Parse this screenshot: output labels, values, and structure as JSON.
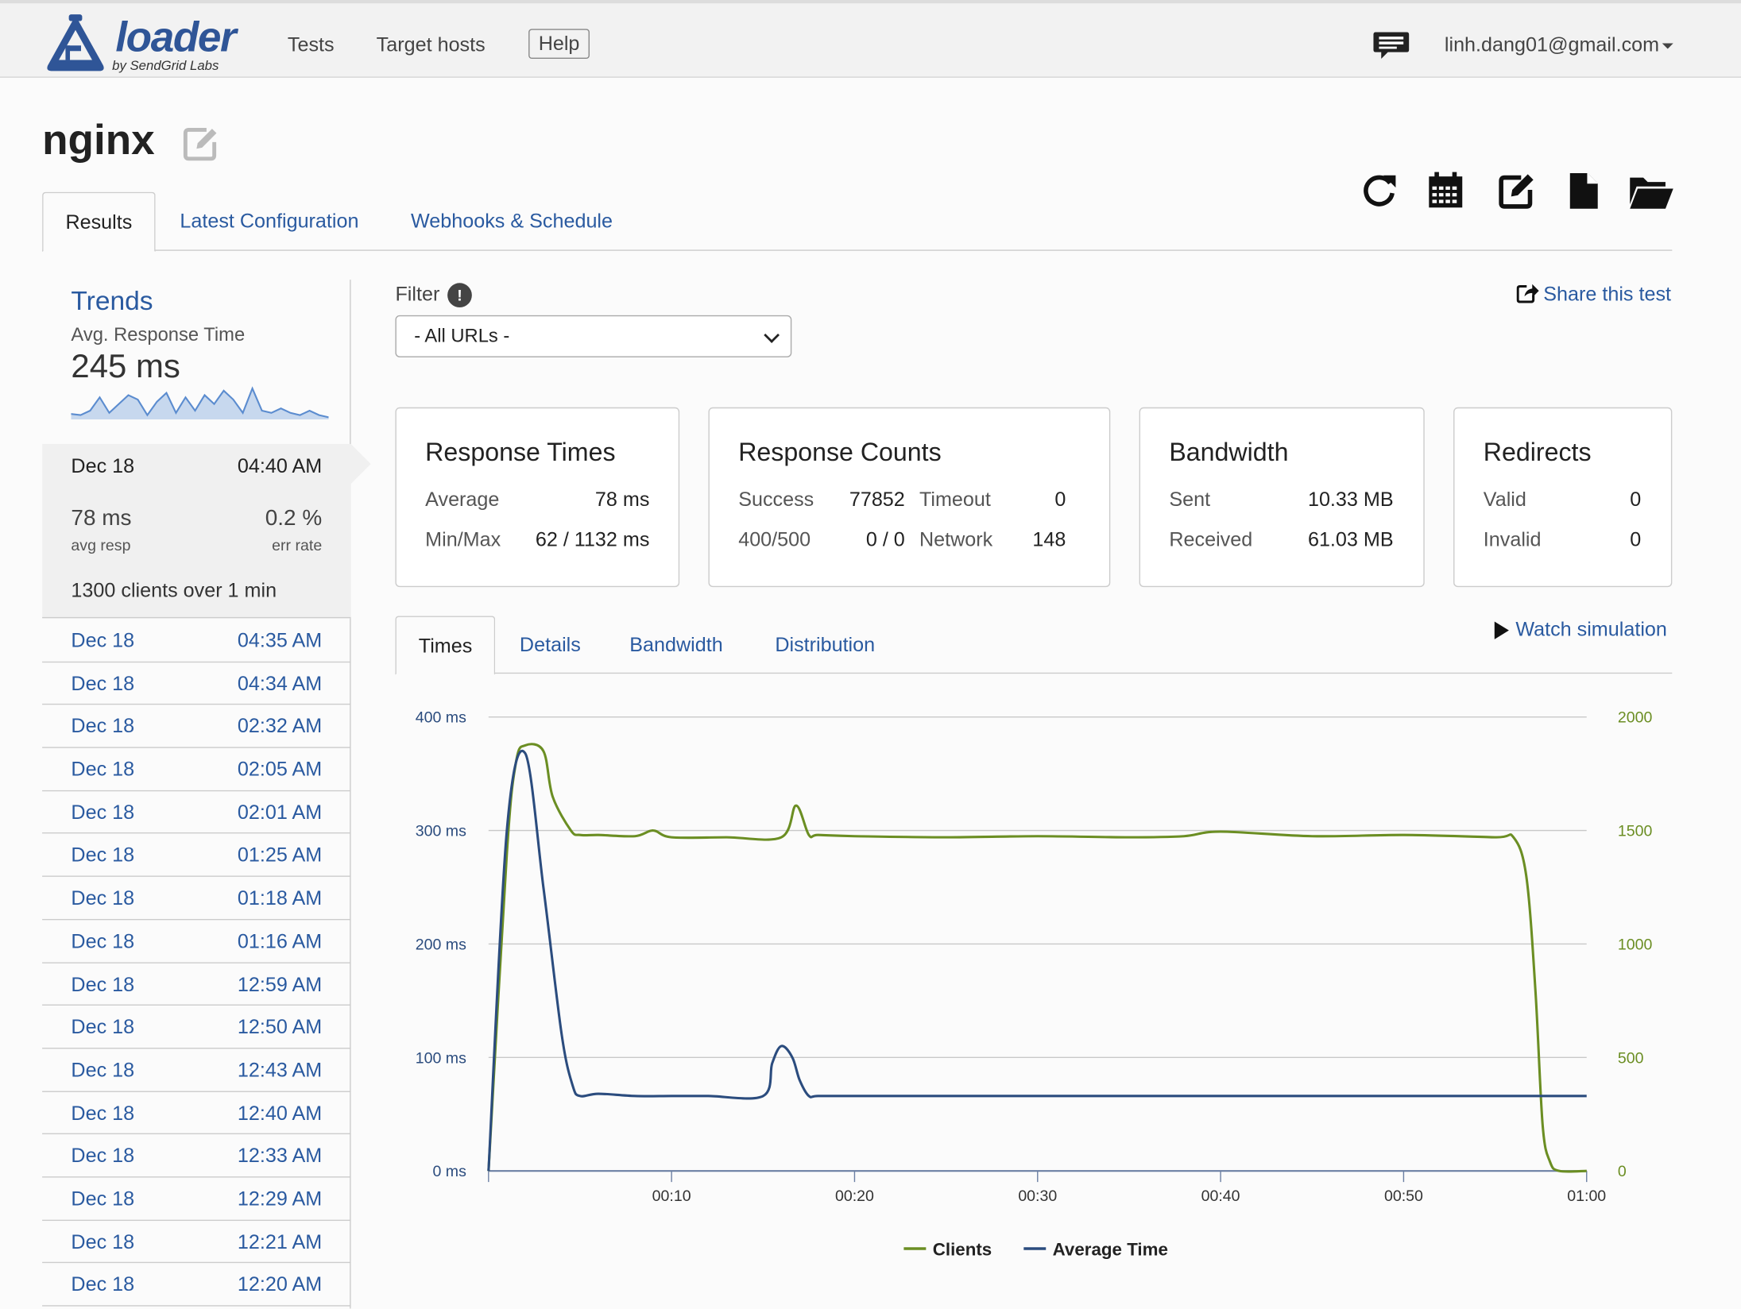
{
  "nav": {
    "logo_text": "loader",
    "logo_sub": "by SendGrid Labs",
    "links": [
      "Tests",
      "Target hosts"
    ],
    "help": "Help",
    "user": "linh.dang01@gmail.com"
  },
  "page": {
    "title": "nginx"
  },
  "toolbar": {
    "icons": [
      "refresh-icon",
      "calendar-icon",
      "edit-icon",
      "file-icon",
      "folder-open-icon"
    ]
  },
  "tabs": [
    {
      "label": "Results",
      "active": true
    },
    {
      "label": "Latest Configuration",
      "active": false
    },
    {
      "label": "Webhooks & Schedule",
      "active": false
    }
  ],
  "sidebar": {
    "trends_title": "Trends",
    "trends_metric": "Avg. Response Time",
    "trends_value": "245 ms",
    "sparkline": [
      5,
      4,
      8,
      20,
      6,
      14,
      22,
      18,
      4,
      16,
      24,
      6,
      20,
      8,
      22,
      14,
      26,
      18,
      6,
      28,
      8,
      6,
      10,
      6,
      4,
      8,
      4,
      2
    ],
    "current": {
      "date": "Dec 18",
      "time": "04:40 AM",
      "avg": "78 ms",
      "avg_label": "avg resp",
      "err": "0.2 %",
      "err_label": "err rate",
      "clients_text": "1300 clients over 1 min"
    },
    "runs": [
      {
        "date": "Dec 18",
        "time": "04:35 AM"
      },
      {
        "date": "Dec 18",
        "time": "04:34 AM"
      },
      {
        "date": "Dec 18",
        "time": "02:32 AM"
      },
      {
        "date": "Dec 18",
        "time": "02:05 AM"
      },
      {
        "date": "Dec 18",
        "time": "02:01 AM"
      },
      {
        "date": "Dec 18",
        "time": "01:25 AM"
      },
      {
        "date": "Dec 18",
        "time": "01:18 AM"
      },
      {
        "date": "Dec 18",
        "time": "01:16 AM"
      },
      {
        "date": "Dec 18",
        "time": "12:59 AM"
      },
      {
        "date": "Dec 18",
        "time": "12:50 AM"
      },
      {
        "date": "Dec 18",
        "time": "12:43 AM"
      },
      {
        "date": "Dec 18",
        "time": "12:40 AM"
      },
      {
        "date": "Dec 18",
        "time": "12:33 AM"
      },
      {
        "date": "Dec 18",
        "time": "12:29 AM"
      },
      {
        "date": "Dec 18",
        "time": "12:21 AM"
      },
      {
        "date": "Dec 18",
        "time": "12:20 AM"
      }
    ]
  },
  "filter": {
    "label": "Filter",
    "selected": "- All URLs -"
  },
  "share": "Share this test",
  "stats": {
    "response_times": {
      "title": "Response Times",
      "average_label": "Average",
      "average": "78 ms",
      "minmax_label": "Min/Max",
      "minmax": "62 / 1132 ms"
    },
    "response_counts": {
      "title": "Response Counts",
      "success_label": "Success",
      "success": "77852",
      "timeout_label": "Timeout",
      "timeout": "0",
      "http_label": "400/500",
      "http": "0 / 0",
      "network_label": "Network",
      "network": "148"
    },
    "bandwidth": {
      "title": "Bandwidth",
      "sent_label": "Sent",
      "sent": "10.33 MB",
      "received_label": "Received",
      "received": "61.03 MB"
    },
    "redirects": {
      "title": "Redirects",
      "valid_label": "Valid",
      "valid": "0",
      "invalid_label": "Invalid",
      "invalid": "0"
    }
  },
  "subtabs": [
    {
      "label": "Times",
      "active": true
    },
    {
      "label": "Details",
      "active": false
    },
    {
      "label": "Bandwidth",
      "active": false
    },
    {
      "label": "Distribution",
      "active": false
    }
  ],
  "watch": "Watch simulation",
  "colors": {
    "clients": "#6b8e23",
    "average_time": "#2b4c7e",
    "link": "#2a5aa0"
  },
  "chart_data": {
    "type": "line",
    "xlim": [
      0,
      60
    ],
    "x_ticks": [
      "00:10",
      "00:20",
      "00:30",
      "00:40",
      "00:50",
      "01:00"
    ],
    "y_left": {
      "ticks": [
        "400 ms",
        "300 ms",
        "200 ms",
        "100 ms",
        "0 ms"
      ],
      "ylim": [
        0,
        400
      ]
    },
    "y_right": {
      "ticks": [
        "2000",
        "1500",
        "1000",
        "500",
        "0"
      ],
      "ylim": [
        0,
        2000
      ]
    },
    "grid": true,
    "legend_position": "bottom",
    "series": [
      {
        "name": "Clients",
        "axis": "right",
        "x": [
          0,
          1,
          1.5,
          2,
          3,
          3.5,
          4.5,
          5,
          6,
          8,
          9,
          10,
          13,
          16,
          16.8,
          17.5,
          18,
          20,
          25,
          30,
          35,
          38,
          40,
          45,
          50,
          55,
          56,
          56.7,
          57.2,
          57.6,
          58,
          58.5,
          60
        ],
        "values": [
          0,
          1400,
          1800,
          1875,
          1850,
          1650,
          1500,
          1480,
          1480,
          1475,
          1500,
          1470,
          1470,
          1470,
          1610,
          1480,
          1480,
          1475,
          1470,
          1475,
          1470,
          1475,
          1495,
          1475,
          1480,
          1470,
          1470,
          1300,
          800,
          200,
          40,
          0,
          0
        ]
      },
      {
        "name": "Average Time",
        "axis": "left",
        "x": [
          0,
          1,
          2,
          3,
          4,
          4.6,
          5,
          6,
          8,
          10,
          12,
          15,
          15.5,
          16,
          16.6,
          17,
          17.5,
          18,
          20,
          25,
          30,
          35,
          40,
          45,
          50,
          55,
          60
        ],
        "values": [
          0,
          300,
          368,
          250,
          120,
          75,
          66,
          68,
          66,
          66,
          66,
          66,
          95,
          110,
          100,
          80,
          66,
          66,
          66,
          66,
          66,
          66,
          66,
          66,
          66,
          66,
          66
        ]
      }
    ]
  }
}
